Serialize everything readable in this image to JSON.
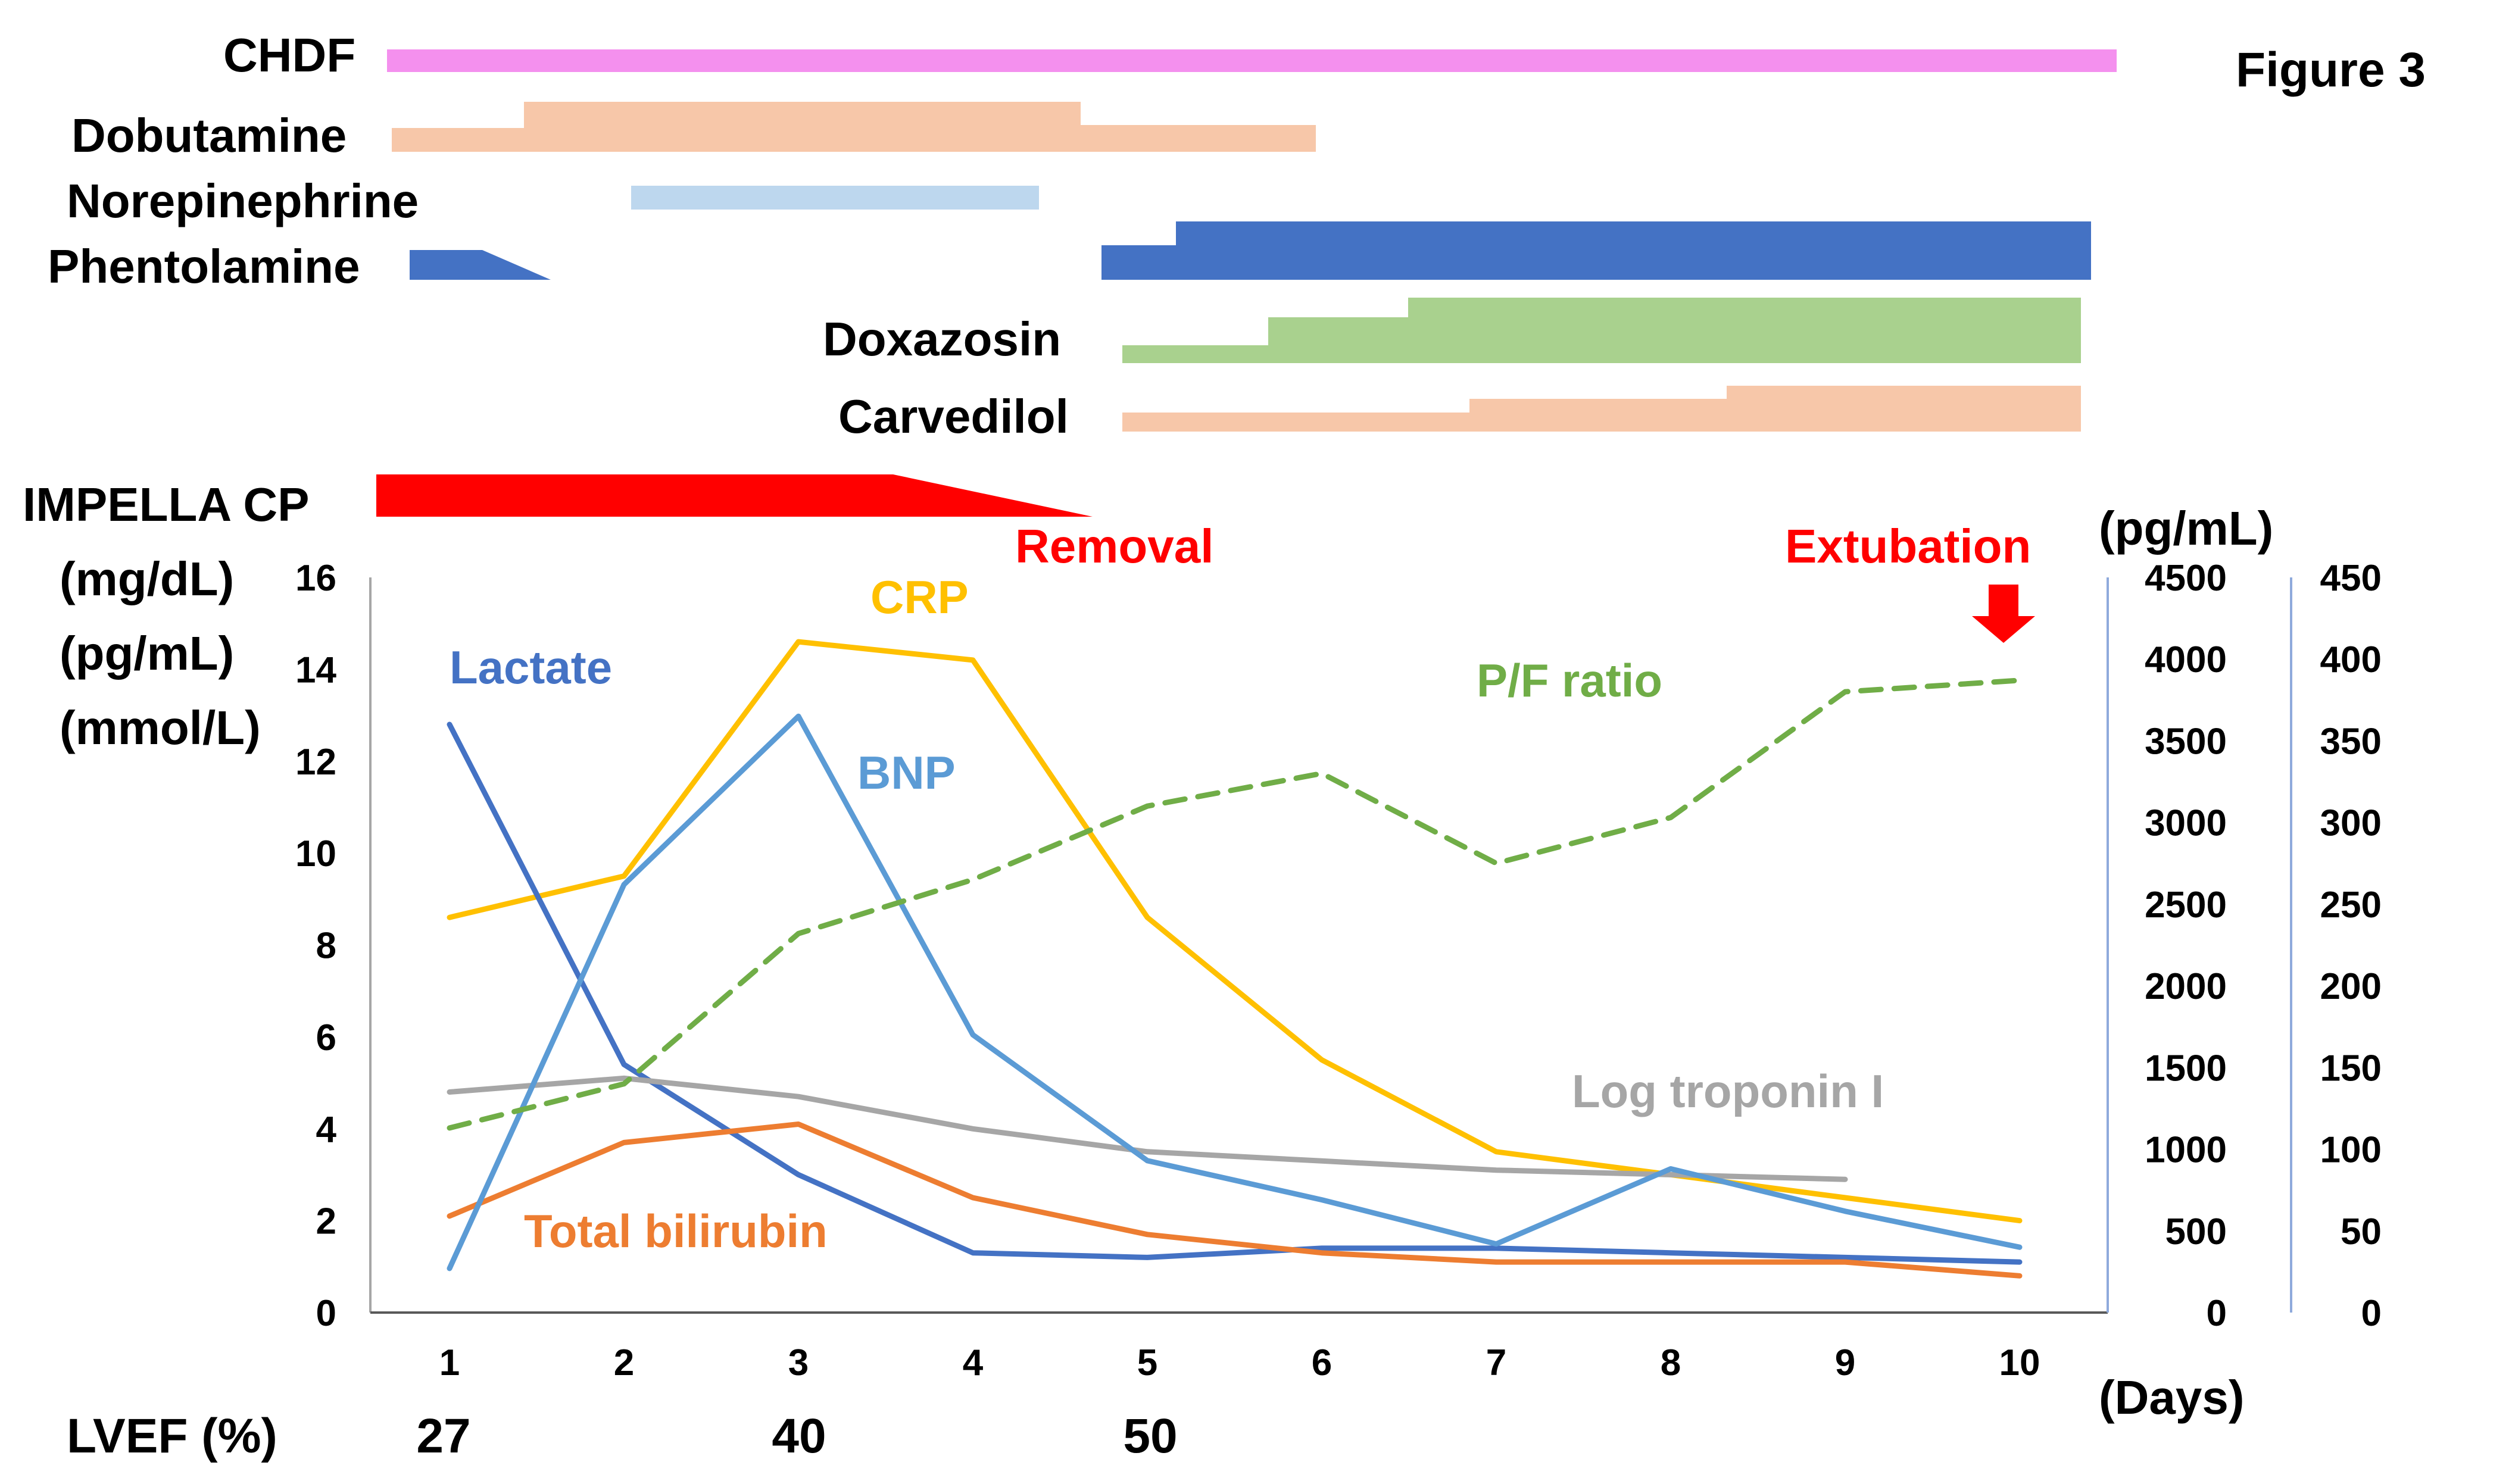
{
  "figure_label": "Figure 3",
  "therapy_labels": {
    "chdf": "CHDF",
    "dobutamine": "Dobutamine",
    "norepinephrine": "Norepinephrine",
    "phentolamine": "Phentolamine",
    "doxazosin": "Doxazosin",
    "carvedilol": "Carvedilol",
    "impella": "IMPELLA CP"
  },
  "therapy_colors": {
    "chdf": "#f490ee",
    "dobutamine": "#f7c7a9",
    "norepinephrine": "#bdd7ee",
    "phentolamine": "#4472c4",
    "doxazosin": "#a9d18e",
    "carvedilol": "#f7c7a9",
    "impella": "#ff0000"
  },
  "annotations": {
    "removal": "Removal",
    "extubation": "Extubation"
  },
  "lvef": {
    "label": "LVEF (%)",
    "values": [
      {
        "day": 1,
        "value": "27"
      },
      {
        "day": 3,
        "value": "40"
      },
      {
        "day": 5,
        "value": "50"
      }
    ]
  },
  "chart_data": {
    "type": "line",
    "x": [
      1,
      2,
      3,
      4,
      5,
      6,
      7,
      8,
      9,
      10
    ],
    "x_tick_labels": [
      "1",
      "2",
      "3",
      "4",
      "5",
      "6",
      "7",
      "8",
      "9",
      "10"
    ],
    "xlabel": "(Days)",
    "left_axis": {
      "unit_labels": [
        "(mg/dL)",
        "(pg/mL)",
        "(mmol/L)"
      ],
      "range": [
        0,
        16
      ],
      "ticks": [
        "0",
        "2",
        "4",
        "6",
        "8",
        "10",
        "12",
        "14",
        "16"
      ]
    },
    "right_axis_1": {
      "unit_label": "(pg/mL)",
      "range": [
        0,
        4500
      ],
      "ticks": [
        "0",
        "500",
        "1000",
        "1500",
        "2000",
        "2500",
        "3000",
        "3500",
        "4000",
        "4500"
      ]
    },
    "right_axis_2": {
      "range": [
        0,
        450
      ],
      "ticks": [
        "0",
        "50",
        "100",
        "150",
        "200",
        "250",
        "300",
        "350",
        "400",
        "450"
      ]
    },
    "series": [
      {
        "name": "CRP",
        "axis": "left",
        "color": "#ffc000",
        "dashed": false,
        "x": [
          1,
          2,
          3,
          4,
          5,
          6,
          7,
          8,
          9,
          10
        ],
        "values": [
          8.6,
          9.5,
          14.6,
          14.2,
          8.6,
          5.5,
          3.5,
          3.0,
          2.5,
          2.0
        ]
      },
      {
        "name": "Lactate",
        "axis": "left",
        "color": "#4472c4",
        "dashed": false,
        "x": [
          1,
          2,
          3,
          4,
          5,
          6,
          7,
          8,
          9,
          10
        ],
        "values": [
          12.8,
          5.4,
          3.0,
          1.3,
          1.2,
          1.4,
          1.4,
          1.3,
          1.2,
          1.1
        ]
      },
      {
        "name": "Total bilirubin",
        "axis": "left",
        "color": "#ed7d31",
        "dashed": false,
        "x": [
          1,
          2,
          3,
          4,
          5,
          6,
          7,
          8,
          9,
          10
        ],
        "values": [
          2.1,
          3.7,
          4.1,
          2.5,
          1.7,
          1.3,
          1.1,
          1.1,
          1.1,
          0.8
        ]
      },
      {
        "name": "Log troponin I",
        "axis": "left",
        "color": "#a6a6a6",
        "dashed": false,
        "x": [
          1,
          2,
          3,
          4,
          5,
          6,
          7,
          8,
          9
        ],
        "values": [
          4.8,
          5.1,
          4.7,
          4.0,
          3.5,
          3.3,
          3.1,
          3.0,
          2.9
        ]
      },
      {
        "name": "BNP",
        "axis": "right_1",
        "color": "#5b9bd5",
        "dashed": false,
        "x": [
          1,
          2,
          3,
          4,
          5,
          6,
          7,
          8,
          9,
          10
        ],
        "values": [
          270,
          2620,
          3650,
          1700,
          930,
          690,
          420,
          880,
          620,
          400
        ]
      },
      {
        "name": "P/F ratio",
        "axis": "right_2",
        "color": "#70ad47",
        "dashed": true,
        "x": [
          1,
          2,
          3,
          4,
          5,
          6,
          7,
          8,
          9,
          10
        ],
        "values": [
          113,
          140,
          232,
          265,
          310,
          330,
          275,
          303,
          380,
          387
        ]
      }
    ]
  }
}
